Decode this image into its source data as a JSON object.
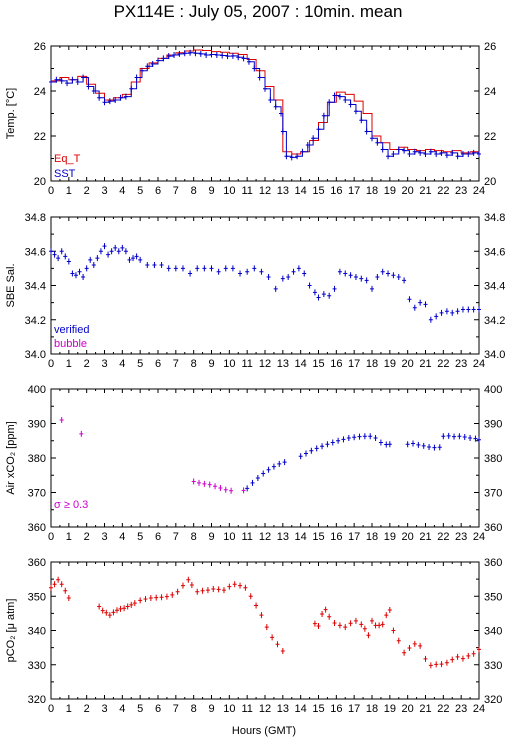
{
  "title": "PX114E : July 05, 2007 : 10min. mean",
  "xlabel": "Hours (GMT)",
  "x_ticks": [
    0,
    1,
    2,
    3,
    4,
    5,
    6,
    7,
    8,
    9,
    10,
    11,
    12,
    13,
    14,
    15,
    16,
    17,
    18,
    19,
    20,
    21,
    22,
    23,
    24
  ],
  "colors": {
    "blue": "#0000cc",
    "red": "#dd0000",
    "magenta": "#cc00cc",
    "axis": "#000000"
  },
  "chart_data": [
    {
      "type": "line",
      "ylabel": "Temp. [°C]",
      "xlim": [
        0,
        24
      ],
      "ylim": [
        20,
        26
      ],
      "yticks": [
        20,
        22,
        24,
        26
      ],
      "legend": [
        {
          "name": "Eq_T",
          "color": "#dd0000"
        },
        {
          "name": "SST",
          "color": "#0000cc"
        }
      ],
      "series": [
        {
          "name": "Eq_T",
          "color": "#dd0000",
          "x": [
            0,
            0.5,
            1,
            1.5,
            2,
            2.5,
            3,
            3.5,
            4,
            4.5,
            5,
            5.5,
            6,
            6.5,
            7,
            7.5,
            8,
            8.5,
            9,
            9.5,
            10,
            10.5,
            11,
            11.5,
            12,
            12.5,
            13,
            13.5,
            14,
            14.5,
            15,
            15.5,
            16,
            16.5,
            17,
            17.5,
            18,
            18.5,
            19,
            19.5,
            20,
            20.5,
            21,
            21.5,
            22,
            22.5,
            23,
            23.5,
            24
          ],
          "y": [
            24.45,
            24.6,
            24.5,
            24.65,
            24.3,
            23.9,
            23.6,
            23.7,
            23.85,
            24.4,
            25.0,
            25.25,
            25.45,
            25.6,
            25.7,
            25.78,
            25.82,
            25.8,
            25.75,
            25.72,
            25.68,
            25.62,
            25.4,
            24.9,
            24.2,
            23.6,
            21.3,
            21.2,
            21.3,
            21.8,
            22.6,
            23.5,
            23.95,
            23.85,
            23.55,
            23.0,
            22.0,
            21.7,
            21.4,
            21.5,
            21.4,
            21.35,
            21.4,
            21.35,
            21.3,
            21.35,
            21.25,
            21.3,
            21.3
          ]
        },
        {
          "name": "SST",
          "color": "#0000cc",
          "x": [
            0,
            0.3,
            0.6,
            0.9,
            1.2,
            1.5,
            1.8,
            2.1,
            2.4,
            2.7,
            3.0,
            3.3,
            3.6,
            3.9,
            4.2,
            4.5,
            4.8,
            5.1,
            5.4,
            5.7,
            6.0,
            6.3,
            6.6,
            6.9,
            7.2,
            7.5,
            7.8,
            8.1,
            8.4,
            8.7,
            9.0,
            9.3,
            9.6,
            9.9,
            10.2,
            10.5,
            10.8,
            11.1,
            11.4,
            11.7,
            12.0,
            12.3,
            12.6,
            12.9,
            13.0,
            13.2,
            13.5,
            13.8,
            14.1,
            14.4,
            14.7,
            15.0,
            15.3,
            15.6,
            15.9,
            16.2,
            16.5,
            16.8,
            17.1,
            17.4,
            17.7,
            18.0,
            18.3,
            18.6,
            18.9,
            19.2,
            19.5,
            19.8,
            20.1,
            20.4,
            20.7,
            21.0,
            21.3,
            21.6,
            21.9,
            22.2,
            22.5,
            22.8,
            23.1,
            23.4,
            23.7,
            24.0
          ],
          "y": [
            24.4,
            24.5,
            24.45,
            24.35,
            24.5,
            24.4,
            24.6,
            24.2,
            24.0,
            23.7,
            23.5,
            23.55,
            23.6,
            23.7,
            23.75,
            24.1,
            24.6,
            24.9,
            25.1,
            25.2,
            25.35,
            25.45,
            25.55,
            25.6,
            25.65,
            25.68,
            25.7,
            25.68,
            25.65,
            25.6,
            25.62,
            25.6,
            25.58,
            25.55,
            25.56,
            25.5,
            25.45,
            25.3,
            25.0,
            24.6,
            24.1,
            23.6,
            23.3,
            23.0,
            22.2,
            21.1,
            21.05,
            21.1,
            21.3,
            21.6,
            21.9,
            22.3,
            22.9,
            23.5,
            23.8,
            23.75,
            23.6,
            23.4,
            23.1,
            22.7,
            22.2,
            21.9,
            21.7,
            21.4,
            21.1,
            21.2,
            21.4,
            21.35,
            21.2,
            21.3,
            21.25,
            21.2,
            21.3,
            21.2,
            21.25,
            21.15,
            21.25,
            21.1,
            21.2,
            21.2,
            21.25,
            21.2
          ]
        }
      ]
    },
    {
      "type": "scatter",
      "ylabel": "SBE Sal.",
      "xlim": [
        0,
        24
      ],
      "ylim": [
        34,
        34.8
      ],
      "yticks": [
        34,
        34.2,
        34.4,
        34.6,
        34.8
      ],
      "legend": [
        {
          "name": "verified",
          "color": "#0000cc"
        },
        {
          "name": "bubble",
          "color": "#cc00cc"
        }
      ],
      "series": [
        {
          "name": "verified",
          "color": "#0000cc",
          "x": [
            0,
            0.2,
            0.4,
            0.6,
            0.8,
            1.0,
            1.2,
            1.4,
            1.6,
            1.8,
            2.0,
            2.2,
            2.4,
            2.6,
            2.8,
            3.0,
            3.2,
            3.4,
            3.6,
            3.8,
            4.0,
            4.2,
            4.4,
            4.6,
            4.8,
            5.0,
            5.4,
            5.8,
            6.2,
            6.6,
            7.0,
            7.4,
            7.8,
            8.2,
            8.6,
            9.0,
            9.4,
            9.8,
            10.2,
            10.6,
            11.0,
            11.4,
            11.8,
            12.2,
            12.6,
            13.0,
            13.3,
            13.6,
            13.9,
            14.2,
            14.5,
            14.8,
            15.0,
            15.3,
            15.6,
            15.9,
            16.2,
            16.5,
            16.8,
            17.1,
            17.4,
            17.7,
            18.0,
            18.3,
            18.6,
            18.9,
            19.2,
            19.5,
            19.8,
            20.1,
            20.4,
            20.7,
            21.0,
            21.3,
            21.6,
            21.9,
            22.2,
            22.5,
            22.8,
            23.1,
            23.4,
            23.7,
            24.0
          ],
          "y": [
            34.6,
            34.58,
            34.56,
            34.6,
            34.57,
            34.54,
            34.47,
            34.46,
            34.48,
            34.45,
            34.5,
            34.55,
            34.52,
            34.56,
            34.6,
            34.63,
            34.58,
            34.6,
            34.62,
            34.6,
            34.62,
            34.6,
            34.55,
            34.56,
            34.57,
            34.55,
            34.52,
            34.52,
            34.52,
            34.5,
            34.5,
            34.5,
            34.47,
            34.5,
            34.5,
            34.5,
            34.48,
            34.5,
            34.5,
            34.47,
            34.48,
            34.5,
            34.48,
            34.45,
            34.38,
            34.44,
            34.45,
            34.48,
            34.5,
            34.47,
            34.4,
            34.36,
            34.33,
            34.35,
            34.34,
            34.38,
            34.48,
            34.47,
            34.46,
            34.45,
            34.44,
            34.43,
            34.38,
            34.45,
            34.48,
            34.47,
            34.46,
            34.45,
            34.43,
            34.32,
            34.27,
            34.3,
            34.29,
            34.2,
            34.22,
            34.24,
            34.25,
            34.24,
            34.25,
            34.26,
            34.26,
            34.26,
            34.26
          ]
        }
      ]
    },
    {
      "type": "scatter",
      "ylabel": "Air xCO₂ [ppm]",
      "xlim": [
        0,
        24
      ],
      "ylim": [
        360,
        400
      ],
      "yticks": [
        360,
        370,
        380,
        390,
        400
      ],
      "annotation": "σ ≥ 0.3",
      "series": [
        {
          "name": "σ ≥ 0.3",
          "color": "#cc00cc",
          "x": [
            0.6,
            1.7,
            8.0,
            8.3,
            8.6,
            8.9,
            9.2,
            9.5,
            9.8,
            10.1,
            10.8
          ],
          "y": [
            391,
            387,
            373.2,
            372.8,
            372.5,
            372.3,
            371.8,
            371.3,
            370.8,
            370.5,
            370.6
          ]
        },
        {
          "name": "verified",
          "color": "#0000cc",
          "x": [
            11.0,
            11.3,
            11.6,
            11.9,
            12.2,
            12.5,
            12.8,
            13.1,
            14.0,
            14.3,
            14.6,
            14.9,
            15.2,
            15.5,
            15.8,
            16.1,
            16.4,
            16.7,
            17.0,
            17.3,
            17.6,
            17.9,
            18.2,
            18.5,
            18.8,
            19.0,
            20.0,
            20.3,
            20.6,
            20.9,
            21.2,
            21.5,
            21.8,
            22.0,
            22.3,
            22.6,
            22.9,
            23.2,
            23.5,
            23.8,
            24.0
          ],
          "y": [
            371.2,
            372.8,
            374.2,
            375.5,
            376.6,
            377.5,
            378.3,
            378.8,
            380.5,
            381.3,
            382.1,
            382.8,
            383.4,
            384.0,
            384.5,
            385.0,
            385.4,
            385.8,
            386.0,
            386.2,
            386.3,
            386.3,
            385.8,
            384.5,
            383.9,
            384.0,
            384.0,
            384.2,
            383.8,
            383.5,
            383.2,
            383.0,
            383.1,
            386.3,
            386.4,
            386.2,
            386.3,
            386.1,
            385.8,
            385.6,
            385.3
          ]
        }
      ]
    },
    {
      "type": "scatter",
      "ylabel": "pCO₂ [μ atm]",
      "xlim": [
        0,
        24
      ],
      "ylim": [
        320,
        360
      ],
      "yticks": [
        320,
        330,
        340,
        350,
        360
      ],
      "series": [
        {
          "name": "pCO2",
          "color": "#dd0000",
          "x": [
            0,
            0.2,
            0.4,
            0.6,
            0.8,
            1.0,
            2.7,
            2.9,
            3.1,
            3.3,
            3.5,
            3.7,
            3.9,
            4.1,
            4.3,
            4.5,
            4.7,
            5.0,
            5.3,
            5.6,
            5.9,
            6.2,
            6.5,
            6.8,
            7.1,
            7.4,
            7.7,
            7.9,
            8.2,
            8.5,
            8.8,
            9.1,
            9.4,
            9.7,
            10.0,
            10.3,
            10.6,
            10.9,
            11.2,
            11.5,
            11.8,
            12.1,
            12.4,
            12.7,
            13.0,
            14.8,
            15.0,
            15.2,
            15.4,
            15.6,
            15.9,
            16.2,
            16.5,
            16.8,
            17.1,
            17.4,
            17.6,
            17.8,
            18.0,
            18.2,
            18.4,
            18.6,
            18.8,
            19.0,
            19.2,
            19.5,
            19.8,
            20.1,
            20.4,
            20.7,
            21.0,
            21.3,
            21.6,
            21.9,
            22.2,
            22.5,
            22.8,
            23.1,
            23.4,
            23.7,
            24.0
          ],
          "y": [
            352.5,
            353.5,
            354.8,
            353.5,
            351.6,
            349.5,
            347,
            345.8,
            345.2,
            344.5,
            345.3,
            345.9,
            346.3,
            346.5,
            347,
            347.5,
            348,
            348.8,
            349.2,
            349.5,
            349.6,
            349.7,
            349.9,
            350.4,
            351.3,
            353.1,
            354.8,
            353.3,
            351.3,
            351.6,
            351.8,
            352.1,
            352.0,
            351.8,
            352.8,
            353.5,
            353.1,
            352.5,
            350.0,
            347.3,
            344.5,
            341.0,
            338.0,
            336.0,
            334.0,
            342.0,
            341.3,
            344.8,
            346.1,
            344.0,
            342.2,
            341.5,
            341.0,
            342.1,
            342.8,
            341.8,
            340.5,
            338.6,
            342.8,
            341.5,
            341.5,
            341.8,
            344.5,
            346.0,
            340.0,
            337.0,
            333.5,
            334.9,
            336.1,
            335.5,
            331.7,
            329.8,
            330.1,
            330.2,
            330.6,
            331.5,
            332.3,
            331.8,
            332.6,
            333.2,
            334.5
          ]
        }
      ]
    }
  ]
}
